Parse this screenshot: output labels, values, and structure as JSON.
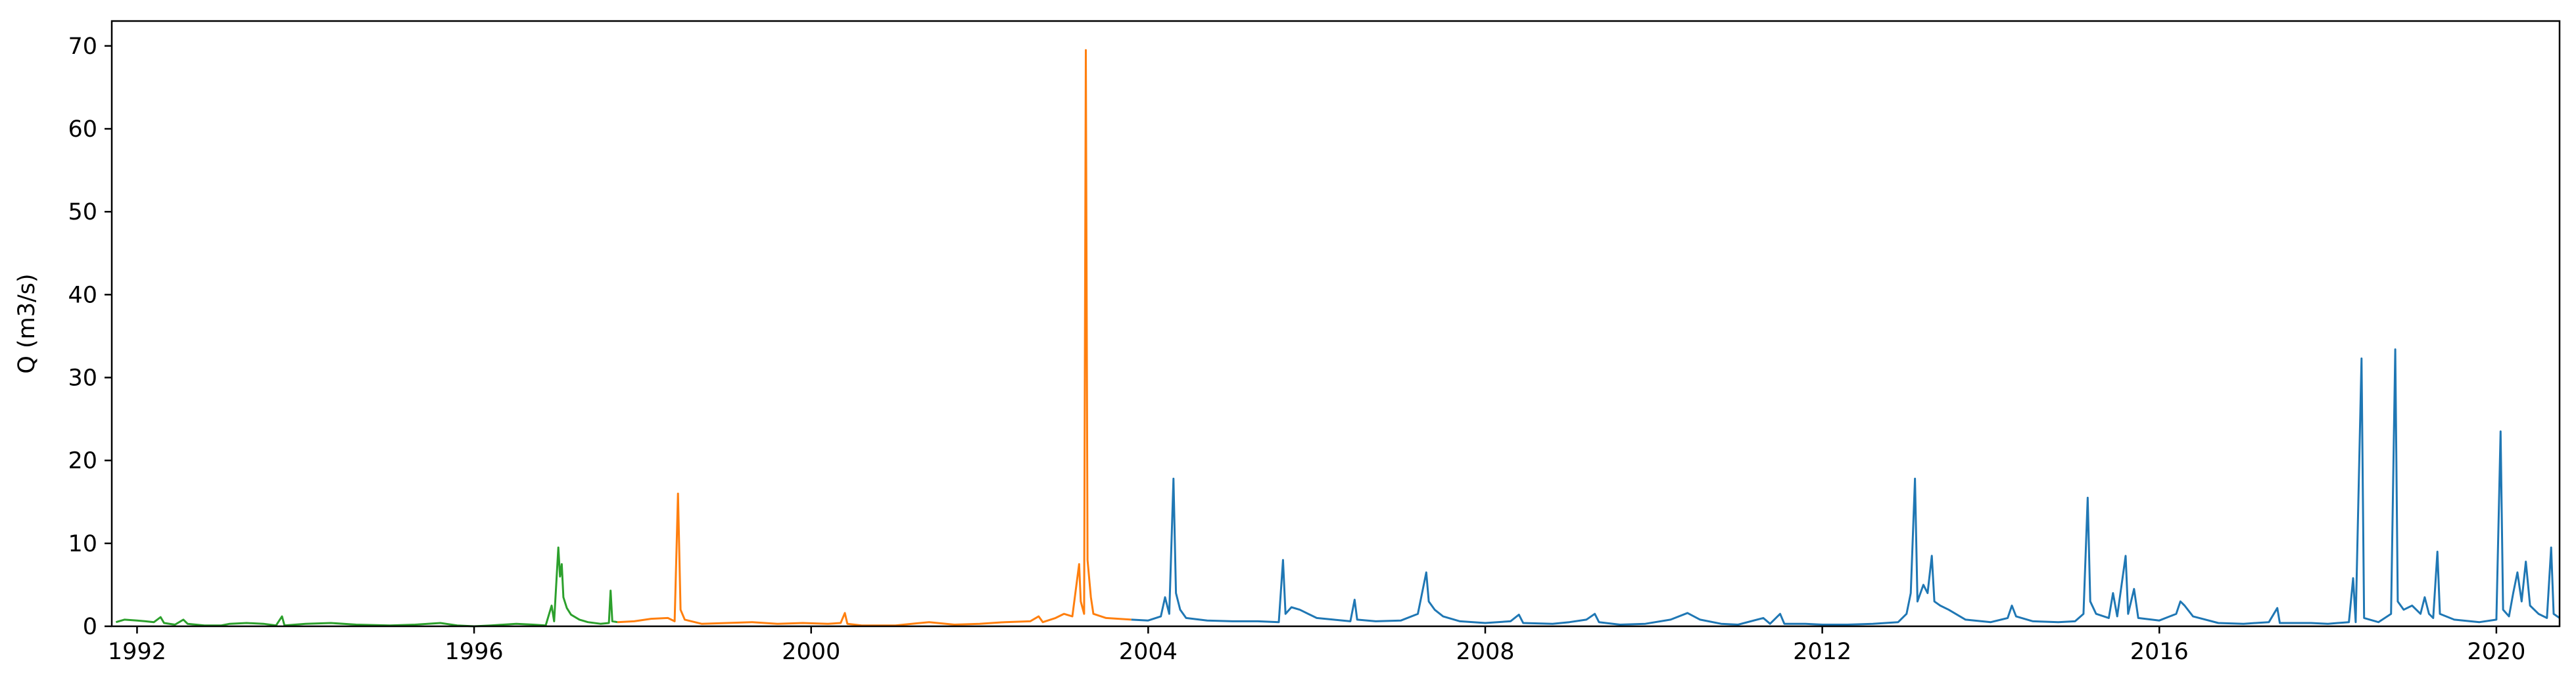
{
  "chart_data": {
    "type": "line",
    "title": "",
    "xlabel": "",
    "ylabel": "Q (m3/s)",
    "xlim": [
      1991.7,
      2020.75
    ],
    "ylim": [
      0,
      73
    ],
    "grid": false,
    "legend": "none",
    "x_ticks": [
      1992,
      1996,
      2000,
      2004,
      2008,
      2012,
      2016,
      2020
    ],
    "x_tick_labels": [
      "1992",
      "1996",
      "2000",
      "2004",
      "2008",
      "2012",
      "2016",
      "2020"
    ],
    "y_ticks": [
      0,
      10,
      20,
      30,
      40,
      50,
      60,
      70
    ],
    "y_tick_labels": [
      "0",
      "10",
      "20",
      "30",
      "40",
      "50",
      "60",
      "70"
    ],
    "series": [
      {
        "color": "#2ca02c",
        "points": [
          [
            1991.75,
            0.5
          ],
          [
            1991.85,
            0.8
          ],
          [
            1992.0,
            0.7
          ],
          [
            1992.1,
            0.6
          ],
          [
            1992.2,
            0.5
          ],
          [
            1992.28,
            1.1
          ],
          [
            1992.32,
            0.4
          ],
          [
            1992.45,
            0.2
          ],
          [
            1992.55,
            0.8
          ],
          [
            1992.6,
            0.3
          ],
          [
            1992.8,
            0.1
          ],
          [
            1993.0,
            0.1
          ],
          [
            1993.1,
            0.3
          ],
          [
            1993.3,
            0.4
          ],
          [
            1993.5,
            0.3
          ],
          [
            1993.65,
            0.1
          ],
          [
            1993.72,
            1.2
          ],
          [
            1993.75,
            0.1
          ],
          [
            1994.0,
            0.3
          ],
          [
            1994.3,
            0.4
          ],
          [
            1994.6,
            0.2
          ],
          [
            1995.0,
            0.1
          ],
          [
            1995.3,
            0.2
          ],
          [
            1995.6,
            0.4
          ],
          [
            1995.8,
            0.1
          ],
          [
            1996.0,
            0.0
          ],
          [
            1996.2,
            0.1
          ],
          [
            1996.5,
            0.3
          ],
          [
            1996.7,
            0.2
          ],
          [
            1996.85,
            0.1
          ],
          [
            1996.92,
            2.5
          ],
          [
            1996.95,
            0.6
          ],
          [
            1997.0,
            9.5
          ],
          [
            1997.02,
            6.0
          ],
          [
            1997.04,
            7.5
          ],
          [
            1997.06,
            3.5
          ],
          [
            1997.1,
            2.2
          ],
          [
            1997.15,
            1.4
          ],
          [
            1997.25,
            0.8
          ],
          [
            1997.35,
            0.5
          ],
          [
            1997.5,
            0.3
          ],
          [
            1997.6,
            0.4
          ],
          [
            1997.62,
            4.3
          ],
          [
            1997.64,
            0.6
          ],
          [
            1997.7,
            0.5
          ]
        ]
      },
      {
        "color": "#ff7f0e",
        "points": [
          [
            1997.7,
            0.5
          ],
          [
            1997.9,
            0.6
          ],
          [
            1998.1,
            0.9
          ],
          [
            1998.3,
            1.0
          ],
          [
            1998.38,
            0.6
          ],
          [
            1998.42,
            16.0
          ],
          [
            1998.45,
            2.0
          ],
          [
            1998.5,
            0.8
          ],
          [
            1998.7,
            0.3
          ],
          [
            1999.0,
            0.4
          ],
          [
            1999.3,
            0.5
          ],
          [
            1999.6,
            0.3
          ],
          [
            1999.9,
            0.4
          ],
          [
            2000.2,
            0.3
          ],
          [
            2000.35,
            0.4
          ],
          [
            2000.4,
            1.6
          ],
          [
            2000.43,
            0.3
          ],
          [
            2000.6,
            0.1
          ],
          [
            2001.0,
            0.1
          ],
          [
            2001.4,
            0.5
          ],
          [
            2001.7,
            0.2
          ],
          [
            2002.0,
            0.3
          ],
          [
            2002.3,
            0.5
          ],
          [
            2002.6,
            0.6
          ],
          [
            2002.7,
            1.2
          ],
          [
            2002.75,
            0.5
          ],
          [
            2002.9,
            1.0
          ],
          [
            2003.0,
            1.5
          ],
          [
            2003.1,
            1.2
          ],
          [
            2003.18,
            7.5
          ],
          [
            2003.2,
            3.0
          ],
          [
            2003.24,
            1.5
          ],
          [
            2003.26,
            69.5
          ],
          [
            2003.28,
            8.0
          ],
          [
            2003.32,
            3.5
          ],
          [
            2003.35,
            1.5
          ],
          [
            2003.5,
            1.0
          ],
          [
            2003.8,
            0.8
          ]
        ]
      },
      {
        "color": "#1f77b4",
        "points": [
          [
            2003.8,
            0.8
          ],
          [
            2004.0,
            0.7
          ],
          [
            2004.15,
            1.2
          ],
          [
            2004.2,
            3.5
          ],
          [
            2004.25,
            1.5
          ],
          [
            2004.3,
            17.8
          ],
          [
            2004.33,
            4.0
          ],
          [
            2004.38,
            2.0
          ],
          [
            2004.45,
            1.0
          ],
          [
            2004.7,
            0.7
          ],
          [
            2005.0,
            0.6
          ],
          [
            2005.3,
            0.6
          ],
          [
            2005.55,
            0.5
          ],
          [
            2005.6,
            8.0
          ],
          [
            2005.63,
            1.5
          ],
          [
            2005.7,
            2.3
          ],
          [
            2005.8,
            2.0
          ],
          [
            2005.9,
            1.5
          ],
          [
            2006.0,
            1.0
          ],
          [
            2006.2,
            0.8
          ],
          [
            2006.4,
            0.6
          ],
          [
            2006.45,
            3.2
          ],
          [
            2006.48,
            0.8
          ],
          [
            2006.7,
            0.6
          ],
          [
            2007.0,
            0.7
          ],
          [
            2007.2,
            1.5
          ],
          [
            2007.3,
            6.5
          ],
          [
            2007.33,
            3.0
          ],
          [
            2007.4,
            2.0
          ],
          [
            2007.5,
            1.2
          ],
          [
            2007.7,
            0.6
          ],
          [
            2008.0,
            0.4
          ],
          [
            2008.3,
            0.6
          ],
          [
            2008.4,
            1.4
          ],
          [
            2008.45,
            0.4
          ],
          [
            2008.8,
            0.3
          ],
          [
            2009.0,
            0.5
          ],
          [
            2009.2,
            0.8
          ],
          [
            2009.3,
            1.5
          ],
          [
            2009.35,
            0.5
          ],
          [
            2009.6,
            0.2
          ],
          [
            2009.9,
            0.3
          ],
          [
            2010.2,
            0.8
          ],
          [
            2010.4,
            1.6
          ],
          [
            2010.55,
            0.8
          ],
          [
            2010.8,
            0.3
          ],
          [
            2011.0,
            0.2
          ],
          [
            2011.3,
            1.0
          ],
          [
            2011.38,
            0.3
          ],
          [
            2011.5,
            1.5
          ],
          [
            2011.55,
            0.3
          ],
          [
            2011.8,
            0.3
          ],
          [
            2012.0,
            0.2
          ],
          [
            2012.3,
            0.2
          ],
          [
            2012.6,
            0.3
          ],
          [
            2012.9,
            0.5
          ],
          [
            2013.0,
            1.5
          ],
          [
            2013.05,
            4.0
          ],
          [
            2013.1,
            17.8
          ],
          [
            2013.13,
            3.0
          ],
          [
            2013.2,
            5.0
          ],
          [
            2013.25,
            4.0
          ],
          [
            2013.3,
            8.5
          ],
          [
            2013.33,
            3.0
          ],
          [
            2013.4,
            2.5
          ],
          [
            2013.5,
            2.0
          ],
          [
            2013.7,
            0.8
          ],
          [
            2014.0,
            0.5
          ],
          [
            2014.2,
            1.0
          ],
          [
            2014.25,
            2.5
          ],
          [
            2014.3,
            1.2
          ],
          [
            2014.5,
            0.6
          ],
          [
            2014.8,
            0.5
          ],
          [
            2015.0,
            0.6
          ],
          [
            2015.1,
            1.5
          ],
          [
            2015.15,
            15.5
          ],
          [
            2015.18,
            3.0
          ],
          [
            2015.25,
            1.5
          ],
          [
            2015.4,
            1.0
          ],
          [
            2015.45,
            4.0
          ],
          [
            2015.5,
            1.2
          ],
          [
            2015.6,
            8.5
          ],
          [
            2015.63,
            1.5
          ],
          [
            2015.7,
            4.5
          ],
          [
            2015.75,
            1.0
          ],
          [
            2016.0,
            0.7
          ],
          [
            2016.2,
            1.5
          ],
          [
            2016.25,
            3.0
          ],
          [
            2016.3,
            2.5
          ],
          [
            2016.4,
            1.2
          ],
          [
            2016.7,
            0.4
          ],
          [
            2017.0,
            0.3
          ],
          [
            2017.3,
            0.5
          ],
          [
            2017.4,
            2.2
          ],
          [
            2017.43,
            0.4
          ],
          [
            2017.8,
            0.4
          ],
          [
            2018.0,
            0.3
          ],
          [
            2018.25,
            0.5
          ],
          [
            2018.3,
            5.8
          ],
          [
            2018.33,
            0.5
          ],
          [
            2018.4,
            32.3
          ],
          [
            2018.43,
            1.0
          ],
          [
            2018.6,
            0.5
          ],
          [
            2018.75,
            1.5
          ],
          [
            2018.8,
            33.4
          ],
          [
            2018.83,
            3.0
          ],
          [
            2018.9,
            2.0
          ],
          [
            2019.0,
            2.5
          ],
          [
            2019.1,
            1.5
          ],
          [
            2019.15,
            3.5
          ],
          [
            2019.2,
            1.5
          ],
          [
            2019.25,
            1.0
          ],
          [
            2019.3,
            9.0
          ],
          [
            2019.33,
            1.5
          ],
          [
            2019.5,
            0.8
          ],
          [
            2019.8,
            0.5
          ],
          [
            2020.0,
            0.8
          ],
          [
            2020.05,
            23.5
          ],
          [
            2020.08,
            2.0
          ],
          [
            2020.15,
            1.2
          ],
          [
            2020.2,
            4.0
          ],
          [
            2020.25,
            6.5
          ],
          [
            2020.3,
            3.0
          ],
          [
            2020.35,
            7.8
          ],
          [
            2020.4,
            2.5
          ],
          [
            2020.5,
            1.5
          ],
          [
            2020.6,
            1.0
          ],
          [
            2020.65,
            9.5
          ],
          [
            2020.68,
            1.5
          ],
          [
            2020.75,
            1.0
          ]
        ]
      }
    ]
  }
}
